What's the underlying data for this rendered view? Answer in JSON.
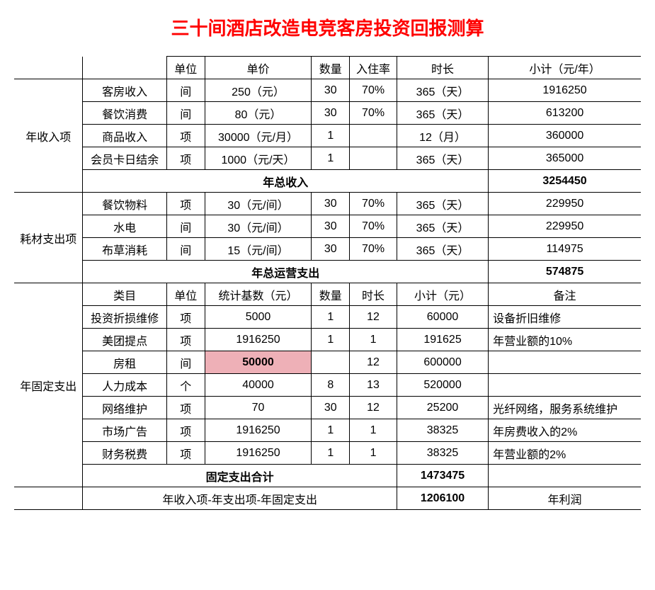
{
  "title": {
    "text": "三十间酒店改造电竞客房投资回报测算",
    "color": "#FF0000"
  },
  "borders": {
    "color": "#000000"
  },
  "highlight_color": "#eeb0b7",
  "hdr1": {
    "unit": "单位",
    "price": "单价",
    "qty": "数量",
    "occ": "入住率",
    "dur": "时长",
    "sub": "小计（元/年）"
  },
  "s1": {
    "label": "年收入项",
    "r1": {
      "item": "客房收入",
      "unit": "间",
      "price": "250（元）",
      "qty": "30",
      "occ": "70%",
      "dur": "365（天）",
      "sub": "1916250"
    },
    "r2": {
      "item": "餐饮消费",
      "unit": "间",
      "price": "80（元）",
      "qty": "30",
      "occ": "70%",
      "dur": "365（天）",
      "sub": "613200"
    },
    "r3": {
      "item": "商品收入",
      "unit": "项",
      "price": "30000（元/月）",
      "qty": "1",
      "occ": "",
      "dur": "12（月）",
      "sub": "360000"
    },
    "r4": {
      "item": "会员卡日结余",
      "unit": "项",
      "price": "1000（元/天）",
      "qty": "1",
      "occ": "",
      "dur": "365（天）",
      "sub": "365000"
    },
    "total_label": "年总收入",
    "total": "3254450"
  },
  "s2": {
    "label": "耗材支出项",
    "r1": {
      "item": "餐饮物料",
      "unit": "项",
      "price": "30（元/间）",
      "qty": "30",
      "occ": "70%",
      "dur": "365（天）",
      "sub": "229950"
    },
    "r2": {
      "item": "水电",
      "unit": "间",
      "price": "30（元/间）",
      "qty": "30",
      "occ": "70%",
      "dur": "365（天）",
      "sub": "229950"
    },
    "r3": {
      "item": "布草消耗",
      "unit": "间",
      "price": "15（元/间）",
      "qty": "30",
      "occ": "70%",
      "dur": "365（天）",
      "sub": "114975"
    },
    "total_label": "年总运营支出",
    "total": "574875"
  },
  "hdr2": {
    "item": "类目",
    "unit": "单位",
    "price": "统计基数（元）",
    "qty": "数量",
    "occ": "时长",
    "dur": "小计（元）",
    "sub": "备注"
  },
  "s3": {
    "label": "年固定支出",
    "r1": {
      "item": "投资折损维修",
      "unit": "项",
      "price": "5000",
      "qty": "1",
      "occ": "12",
      "dur": "60000",
      "sub": "设备折旧维修"
    },
    "r2": {
      "item": "美团提点",
      "unit": "项",
      "price": "1916250",
      "qty": "1",
      "occ": "1",
      "dur": "191625",
      "sub": "年营业额的10%"
    },
    "r3": {
      "item": "房租",
      "unit": "间",
      "price": "50000",
      "qty": "",
      "occ": "12",
      "dur": "600000",
      "sub": ""
    },
    "r4": {
      "item": "人力成本",
      "unit": "个",
      "price": "40000",
      "qty": "8",
      "occ": "13",
      "dur": "520000",
      "sub": ""
    },
    "r5": {
      "item": "网络维护",
      "unit": "项",
      "price": "70",
      "qty": "30",
      "occ": "12",
      "dur": "25200",
      "sub": "光纤网络，服务系统维护"
    },
    "r6": {
      "item": "市场广告",
      "unit": "项",
      "price": "1916250",
      "qty": "1",
      "occ": "1",
      "dur": "38325",
      "sub": "年房费收入的2%"
    },
    "r7": {
      "item": "财务税费",
      "unit": "项",
      "price": "1916250",
      "qty": "1",
      "occ": "1",
      "dur": "38325",
      "sub": "年营业额的2%"
    },
    "total_label": "固定支出合计",
    "total": "1473475"
  },
  "final": {
    "label": "年收入项-年支出项-年固定支出",
    "value": "1206100",
    "note": "年利润"
  }
}
